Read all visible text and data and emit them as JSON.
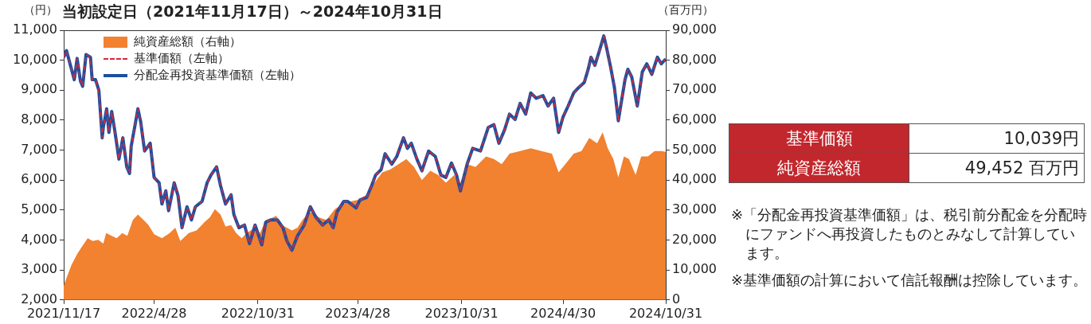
{
  "chart_data": {
    "type": "line",
    "title": "当初設定日（2021年11月17日）～2024年10月31日",
    "ylabel": "（円）",
    "y2label": "（百万円）",
    "xlim": [
      "2021-11-17",
      "2024-10-31"
    ],
    "xticks": [
      {
        "value": "2021-11-17",
        "label": "2021/11/17"
      },
      {
        "value": "2022-04-28",
        "label": "2022/4/28"
      },
      {
        "value": "2022-10-31",
        "label": "2022/10/31"
      },
      {
        "value": "2023-04-28",
        "label": "2023/4/28"
      },
      {
        "value": "2023-10-31",
        "label": "2023/10/31"
      },
      {
        "value": "2024-04-30",
        "label": "2024/4/30"
      },
      {
        "value": "2024-10-31",
        "label": "2024/10/31"
      }
    ],
    "ylim": [
      2000,
      11000
    ],
    "yticks": [
      {
        "value": 2000,
        "label": "2,000"
      },
      {
        "value": 3000,
        "label": "3,000"
      },
      {
        "value": 4000,
        "label": "4,000"
      },
      {
        "value": 5000,
        "label": "5,000"
      },
      {
        "value": 6000,
        "label": "6,000"
      },
      {
        "value": 7000,
        "label": "7,000"
      },
      {
        "value": 8000,
        "label": "8,000"
      },
      {
        "value": 9000,
        "label": "9,000"
      },
      {
        "value": 10000,
        "label": "10,000"
      },
      {
        "value": 11000,
        "label": "11,000"
      }
    ],
    "y2lim": [
      0,
      90000
    ],
    "y2ticks": [
      0,
      {
        "value": 10000,
        "label": "10,000"
      },
      {
        "value": 20000,
        "label": "20,000"
      },
      {
        "value": 30000,
        "label": "30,000"
      },
      {
        "value": 40000,
        "label": "40,000"
      },
      {
        "value": 50000,
        "label": "50,000"
      },
      {
        "value": 60000,
        "label": "60,000"
      },
      {
        "value": 70000,
        "label": "70,000"
      },
      {
        "value": 80000,
        "label": "80,000"
      },
      {
        "value": 90000,
        "label": "90,000"
      }
    ],
    "grid": false,
    "legend": "top left",
    "marker": "none",
    "series": [
      {
        "name": "純資産総額（右軸）",
        "type": "area",
        "axis": "y2",
        "color": "#f28130",
        "x": [
          "2021-11-17",
          "2021-11-22",
          "2021-12-01",
          "2021-12-11",
          "2021-12-20",
          "2021-12-30",
          "2022-01-08",
          "2022-01-18",
          "2022-01-27",
          "2022-02-01",
          "2022-02-11",
          "2022-02-20",
          "2022-03-02",
          "2022-03-11",
          "2022-03-21",
          "2022-03-30",
          "2022-04-09",
          "2022-04-18",
          "2022-04-28",
          "2022-05-12",
          "2022-05-26",
          "2022-06-05",
          "2022-06-14",
          "2022-06-29",
          "2022-07-13",
          "2022-07-27",
          "2022-08-06",
          "2022-08-15",
          "2022-08-25",
          "2022-09-03",
          "2022-09-13",
          "2022-09-22",
          "2022-10-02",
          "2022-10-11",
          "2022-10-26",
          "2022-11-04",
          "2022-11-14",
          "2022-11-23",
          "2022-12-03",
          "2022-12-12",
          "2022-12-22",
          "2022-12-31",
          "2023-01-10",
          "2023-01-19",
          "2023-01-29",
          "2023-02-07",
          "2023-02-17",
          "2023-03-03",
          "2023-03-18",
          "2023-04-01",
          "2023-04-15",
          "2023-04-29",
          "2023-05-18",
          "2023-05-28",
          "2023-06-11",
          "2023-06-25",
          "2023-07-10",
          "2023-07-24",
          "2023-08-07",
          "2023-08-21",
          "2023-09-05",
          "2023-09-19",
          "2023-10-03",
          "2023-10-18",
          "2023-10-27",
          "2023-11-10",
          "2023-11-25",
          "2023-12-14",
          "2023-12-28",
          "2024-01-11",
          "2024-01-25",
          "2024-02-13",
          "2024-03-03",
          "2024-03-22",
          "2024-04-10",
          "2024-04-22",
          "2024-05-04",
          "2024-05-19",
          "2024-06-02",
          "2024-06-16",
          "2024-06-30",
          "2024-07-10",
          "2024-07-19",
          "2024-07-29",
          "2024-08-07",
          "2024-08-17",
          "2024-08-26",
          "2024-09-07",
          "2024-09-17",
          "2024-09-29",
          "2024-10-11",
          "2024-10-23",
          "2024-10-31"
        ],
        "values": [
          4700,
          7300,
          11700,
          15300,
          17900,
          20600,
          19700,
          20100,
          18800,
          22300,
          21400,
          20600,
          22300,
          21400,
          26700,
          28500,
          26700,
          25000,
          21900,
          20600,
          22300,
          24100,
          19700,
          22300,
          23200,
          25900,
          27600,
          30300,
          28500,
          24500,
          25000,
          22300,
          20600,
          22300,
          24100,
          22300,
          26700,
          27200,
          28100,
          25000,
          24100,
          23200,
          24100,
          26700,
          28900,
          29400,
          27600,
          26700,
          30300,
          32000,
          32900,
          33400,
          35600,
          39100,
          42600,
          43500,
          45300,
          47000,
          44400,
          40000,
          43100,
          41700,
          39100,
          41700,
          38200,
          45300,
          44400,
          47900,
          47000,
          45300,
          48800,
          49700,
          50600,
          49700,
          48800,
          42600,
          45300,
          48800,
          49700,
          54100,
          52300,
          55900,
          50600,
          47000,
          40900,
          47900,
          47000,
          41700,
          47900,
          47900,
          49700,
          49700,
          49452
        ]
      },
      {
        "name": "基準価額（左軸）",
        "type": "line",
        "color": "#d22a3c",
        "line_style": "dashed",
        "x": [
          "2021-11-17",
          "2021-11-22",
          "2021-11-27",
          "2021-12-06",
          "2021-12-11",
          "2021-12-17",
          "2021-12-21",
          "2021-12-27",
          "2022-01-04",
          "2022-01-07",
          "2022-01-13",
          "2022-01-19",
          "2022-01-25",
          "2022-01-27",
          "2022-02-02",
          "2022-02-06",
          "2022-02-11",
          "2022-02-17",
          "2022-02-24",
          "2022-03-03",
          "2022-03-10",
          "2022-03-15",
          "2022-03-18",
          "2022-03-25",
          "2022-03-30",
          "2022-04-04",
          "2022-04-11",
          "2022-04-21",
          "2022-04-28",
          "2022-05-07",
          "2022-05-12",
          "2022-05-19",
          "2022-05-24",
          "2022-06-03",
          "2022-06-10",
          "2022-06-17",
          "2022-06-26",
          "2022-07-04",
          "2022-07-11",
          "2022-07-23",
          "2022-08-01",
          "2022-08-08",
          "2022-08-18",
          "2022-08-25",
          "2022-09-03",
          "2022-09-13",
          "2022-09-18",
          "2022-09-27",
          "2022-10-07",
          "2022-10-16",
          "2022-10-26",
          "2022-11-07",
          "2022-11-14",
          "2022-11-23",
          "2022-12-05",
          "2022-12-15",
          "2022-12-22",
          "2022-12-31",
          "2023-01-10",
          "2023-01-22",
          "2023-02-02",
          "2023-02-12",
          "2023-02-24",
          "2023-03-07",
          "2023-03-15",
          "2023-03-22",
          "2023-04-03",
          "2023-04-10",
          "2023-04-25",
          "2023-05-02",
          "2023-05-14",
          "2023-05-23",
          "2023-05-30",
          "2023-06-09",
          "2023-06-16",
          "2023-06-28",
          "2023-07-07",
          "2023-07-19",
          "2023-07-26",
          "2023-08-02",
          "2023-08-12",
          "2023-08-21",
          "2023-09-02",
          "2023-09-14",
          "2023-09-24",
          "2023-10-03",
          "2023-10-13",
          "2023-10-22",
          "2023-10-29",
          "2023-11-10",
          "2023-11-20",
          "2023-12-04",
          "2023-12-18",
          "2023-12-28",
          "2024-01-06",
          "2024-01-16",
          "2024-01-25",
          "2024-02-04",
          "2024-02-13",
          "2024-02-23",
          "2024-03-03",
          "2024-03-13",
          "2024-03-25",
          "2024-04-03",
          "2024-04-13",
          "2024-04-22",
          "2024-04-30",
          "2024-05-09",
          "2024-05-19",
          "2024-05-28",
          "2024-06-07",
          "2024-06-14",
          "2024-06-19",
          "2024-06-26",
          "2024-07-05",
          "2024-07-12",
          "2024-07-17",
          "2024-07-24",
          "2024-07-31",
          "2024-08-07",
          "2024-08-12",
          "2024-08-19",
          "2024-08-24",
          "2024-08-31",
          "2024-09-10",
          "2024-09-19",
          "2024-09-27",
          "2024-10-06",
          "2024-10-16",
          "2024-10-23",
          "2024-10-31"
        ],
        "values": [
          10100,
          10320,
          9970,
          9350,
          10060,
          9300,
          9130,
          10190,
          10100,
          9350,
          9350,
          9000,
          7410,
          7760,
          8380,
          7590,
          8290,
          7590,
          6700,
          7410,
          6440,
          6220,
          7140,
          7850,
          8380,
          7940,
          6970,
          7230,
          6090,
          5910,
          5200,
          5640,
          4980,
          5910,
          5470,
          4410,
          5110,
          4670,
          5110,
          5290,
          5910,
          6170,
          6440,
          5820,
          5200,
          5510,
          4850,
          4410,
          4500,
          3880,
          4500,
          3840,
          4590,
          4670,
          4670,
          4410,
          3970,
          3660,
          4140,
          4500,
          5110,
          4760,
          4500,
          4670,
          4410,
          4940,
          5290,
          5290,
          5070,
          5340,
          5420,
          5820,
          6170,
          6350,
          6880,
          6530,
          6790,
          7410,
          7060,
          7230,
          6700,
          6310,
          6970,
          6790,
          6170,
          6090,
          6570,
          6170,
          5640,
          6530,
          7060,
          6970,
          7760,
          7850,
          7230,
          7670,
          8200,
          8020,
          8560,
          8200,
          8910,
          8730,
          8820,
          8470,
          8730,
          7590,
          8110,
          8470,
          8910,
          9090,
          9260,
          9700,
          10100,
          9830,
          10370,
          10810,
          10410,
          9790,
          9090,
          7980,
          8560,
          9350,
          9700,
          9440,
          8470,
          9610,
          9880,
          9530,
          10100,
          9880,
          10039
        ]
      },
      {
        "name": "分配金再投資基準価額（左軸）",
        "type": "line",
        "color": "#1d4f9f",
        "line_style": "solid",
        "x": [
          "2021-11-17",
          "2021-11-22",
          "2021-11-27",
          "2021-12-06",
          "2021-12-11",
          "2021-12-17",
          "2021-12-21",
          "2021-12-27",
          "2022-01-04",
          "2022-01-07",
          "2022-01-13",
          "2022-01-19",
          "2022-01-25",
          "2022-01-27",
          "2022-02-02",
          "2022-02-06",
          "2022-02-11",
          "2022-02-17",
          "2022-02-24",
          "2022-03-03",
          "2022-03-10",
          "2022-03-15",
          "2022-03-18",
          "2022-03-25",
          "2022-03-30",
          "2022-04-04",
          "2022-04-11",
          "2022-04-21",
          "2022-04-28",
          "2022-05-07",
          "2022-05-12",
          "2022-05-19",
          "2022-05-24",
          "2022-06-03",
          "2022-06-10",
          "2022-06-17",
          "2022-06-26",
          "2022-07-04",
          "2022-07-11",
          "2022-07-23",
          "2022-08-01",
          "2022-08-08",
          "2022-08-18",
          "2022-08-25",
          "2022-09-03",
          "2022-09-13",
          "2022-09-18",
          "2022-09-27",
          "2022-10-07",
          "2022-10-16",
          "2022-10-26",
          "2022-11-07",
          "2022-11-14",
          "2022-11-23",
          "2022-12-05",
          "2022-12-15",
          "2022-12-22",
          "2022-12-31",
          "2023-01-10",
          "2023-01-22",
          "2023-02-02",
          "2023-02-12",
          "2023-02-24",
          "2023-03-07",
          "2023-03-15",
          "2023-03-22",
          "2023-04-03",
          "2023-04-10",
          "2023-04-25",
          "2023-05-02",
          "2023-05-14",
          "2023-05-23",
          "2023-05-30",
          "2023-06-09",
          "2023-06-16",
          "2023-06-28",
          "2023-07-07",
          "2023-07-19",
          "2023-07-26",
          "2023-08-02",
          "2023-08-12",
          "2023-08-21",
          "2023-09-02",
          "2023-09-14",
          "2023-09-24",
          "2023-10-03",
          "2023-10-13",
          "2023-10-22",
          "2023-10-29",
          "2023-11-10",
          "2023-11-20",
          "2023-12-04",
          "2023-12-18",
          "2023-12-28",
          "2024-01-06",
          "2024-01-16",
          "2024-01-25",
          "2024-02-04",
          "2024-02-13",
          "2024-02-23",
          "2024-03-03",
          "2024-03-13",
          "2024-03-25",
          "2024-04-03",
          "2024-04-13",
          "2024-04-22",
          "2024-04-30",
          "2024-05-09",
          "2024-05-19",
          "2024-05-28",
          "2024-06-07",
          "2024-06-14",
          "2024-06-19",
          "2024-06-26",
          "2024-07-05",
          "2024-07-12",
          "2024-07-17",
          "2024-07-24",
          "2024-07-31",
          "2024-08-07",
          "2024-08-12",
          "2024-08-19",
          "2024-08-24",
          "2024-08-31",
          "2024-09-10",
          "2024-09-19",
          "2024-09-27",
          "2024-10-06",
          "2024-10-16",
          "2024-10-23",
          "2024-10-31"
        ],
        "values": [
          10100,
          10320,
          9970,
          9350,
          10060,
          9300,
          9130,
          10190,
          10100,
          9350,
          9350,
          9000,
          7410,
          7760,
          8380,
          7590,
          8290,
          7590,
          6700,
          7410,
          6440,
          6220,
          7140,
          7850,
          8380,
          7940,
          6970,
          7230,
          6090,
          5910,
          5200,
          5640,
          4980,
          5910,
          5470,
          4410,
          5110,
          4670,
          5110,
          5290,
          5910,
          6170,
          6440,
          5820,
          5200,
          5510,
          4850,
          4410,
          4500,
          3880,
          4500,
          3840,
          4590,
          4670,
          4670,
          4410,
          3970,
          3660,
          4140,
          4500,
          5110,
          4760,
          4500,
          4670,
          4410,
          4940,
          5290,
          5290,
          5070,
          5340,
          5420,
          5820,
          6170,
          6350,
          6880,
          6530,
          6790,
          7410,
          7060,
          7230,
          6700,
          6310,
          6970,
          6790,
          6170,
          6090,
          6570,
          6170,
          5640,
          6530,
          7060,
          6970,
          7760,
          7850,
          7230,
          7670,
          8200,
          8020,
          8560,
          8200,
          8910,
          8730,
          8820,
          8470,
          8730,
          7590,
          8110,
          8470,
          8910,
          9090,
          9260,
          9700,
          10100,
          9830,
          10370,
          10810,
          10410,
          9790,
          9090,
          7980,
          8560,
          9350,
          9700,
          9440,
          8470,
          9610,
          9880,
          9530,
          10100,
          9880,
          10039
        ]
      }
    ],
    "annotations": [
      "基準価額",
      "10,039円",
      "純資産総額",
      "49,452 百万円",
      "※「分配金再投資基準価額」は、税引前分配金を分配時にファンドへ再投資したものとみなして計算しています。",
      "※基準価額の計算において信託報酬は控除しています。"
    ]
  }
}
